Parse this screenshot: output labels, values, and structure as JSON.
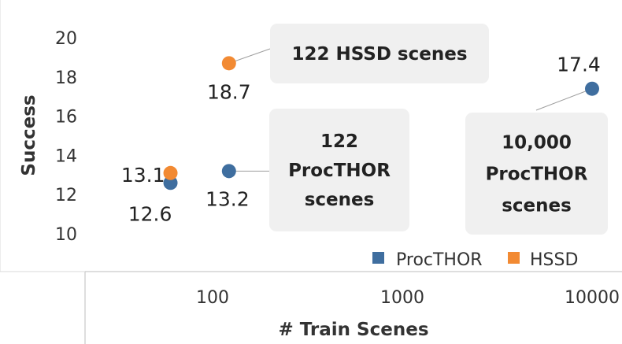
{
  "chart_data": {
    "type": "scatter",
    "xlabel": "# Train Scenes",
    "ylabel": "Success",
    "x_scale": "log",
    "x_ticks": [
      100,
      1000,
      10000
    ],
    "x_tick_labels": [
      "100",
      "1000",
      "10000"
    ],
    "xlim": [
      10,
      20000
    ],
    "y_ticks": [
      10,
      12,
      14,
      16,
      18,
      20
    ],
    "y_tick_labels": [
      "10",
      "12",
      "14",
      "16",
      "18",
      "20"
    ],
    "ylim": [
      8,
      21.5
    ],
    "grid": false,
    "legend_position": "bottom-right",
    "series": [
      {
        "name": "ProcTHOR",
        "color": "#3f6e9f",
        "points": [
          {
            "x": 60,
            "y": 12.6,
            "label": "12.6"
          },
          {
            "x": 122,
            "y": 13.2,
            "label": "13.2"
          },
          {
            "x": 10000,
            "y": 17.4,
            "label": "17.4"
          }
        ]
      },
      {
        "name": "HSSD",
        "color": "#f28a33",
        "points": [
          {
            "x": 60,
            "y": 13.1,
            "label": "13.1"
          },
          {
            "x": 122,
            "y": 18.7,
            "label": "18.7"
          }
        ]
      }
    ],
    "annotations": [
      {
        "lines": [
          "122 HSSD scenes"
        ],
        "series": 1,
        "point": 1
      },
      {
        "lines": [
          "122",
          "ProcTHOR",
          "scenes"
        ],
        "series": 0,
        "point": 1
      },
      {
        "lines": [
          "10,000",
          "ProcTHOR",
          "scenes"
        ],
        "series": 0,
        "point": 2
      }
    ]
  }
}
